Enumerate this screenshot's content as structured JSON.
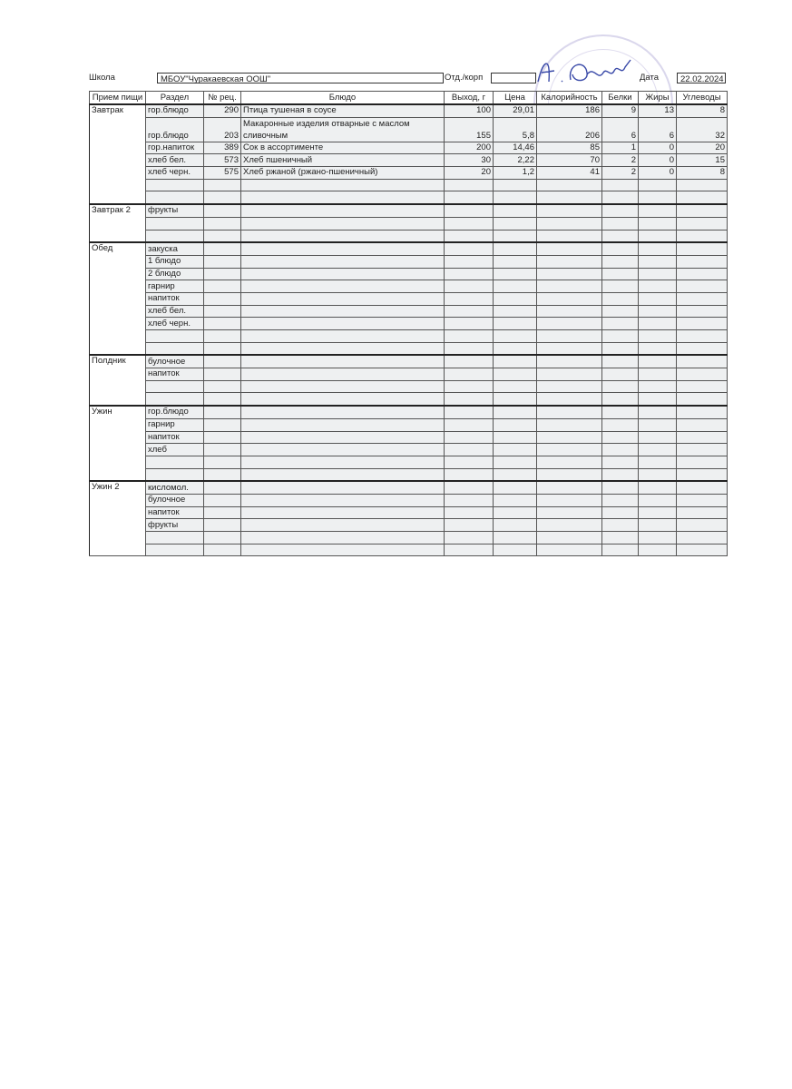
{
  "header": {
    "school_label": "Школа",
    "school_value": "МБОУ\"Чуракаевская ООШ\"",
    "dept_label": "Отд./корп",
    "dept_value": "",
    "date_label": "Дата",
    "date_value": "22.02.2024"
  },
  "columns": [
    "Прием пищи",
    "Раздел",
    "№ рец.",
    "Блюдо",
    "Выход, г",
    "Цена",
    "Калорийность",
    "Белки",
    "Жиры",
    "Углеводы"
  ],
  "groups": [
    {
      "meal": "Завтрак",
      "rows": [
        {
          "section": "гор.блюдо",
          "rec": "290",
          "dish": "Птица тушеная в соусе",
          "out": "100",
          "price": "29,01",
          "kcal": "186",
          "prot": "9",
          "fat": "13",
          "carb": "8"
        },
        {
          "section": "гор.блюдо",
          "rec": "203",
          "dish": "Макаронные изделия отварные с маслом сливочным",
          "out": "155",
          "price": "5,8",
          "kcal": "206",
          "prot": "6",
          "fat": "6",
          "carb": "32",
          "double": true
        },
        {
          "section": "гор.напиток",
          "rec": "389",
          "dish": "Сок в ассортименте",
          "out": "200",
          "price": "14,46",
          "kcal": "85",
          "prot": "1",
          "fat": "0",
          "carb": "20"
        },
        {
          "section": "хлеб бел.",
          "rec": "573",
          "dish": "Хлеб пшеничный",
          "out": "30",
          "price": "2,22",
          "kcal": "70",
          "prot": "2",
          "fat": "0",
          "carb": "15"
        },
        {
          "section": "хлеб черн.",
          "rec": "575",
          "dish": "Хлеб ржаной (ржано-пшеничный)",
          "out": "20",
          "price": "1,2",
          "kcal": "41",
          "prot": "2",
          "fat": "0",
          "carb": "8"
        },
        {},
        {}
      ]
    },
    {
      "meal": "Завтрак 2",
      "rows": [
        {
          "section": "фрукты"
        },
        {},
        {}
      ]
    },
    {
      "meal": "Обед",
      "rows": [
        {
          "section": "закуска"
        },
        {
          "section": "1 блюдо"
        },
        {
          "section": "2 блюдо"
        },
        {
          "section": "гарнир"
        },
        {
          "section": "напиток"
        },
        {
          "section": "хлеб бел."
        },
        {
          "section": "хлеб черн."
        },
        {},
        {}
      ]
    },
    {
      "meal": "Полдник",
      "rows": [
        {
          "section": "булочное"
        },
        {
          "section": "напиток"
        },
        {},
        {}
      ]
    },
    {
      "meal": "Ужин",
      "rows": [
        {
          "section": "гор.блюдо"
        },
        {
          "section": "гарнир"
        },
        {
          "section": "напиток"
        },
        {
          "section": "хлеб"
        },
        {},
        {}
      ]
    },
    {
      "meal": "Ужин 2",
      "rows": [
        {
          "section": "кисломол."
        },
        {
          "section": "булочное"
        },
        {
          "section": "напиток"
        },
        {
          "section": "фрукты"
        },
        {},
        {}
      ]
    }
  ],
  "stamp_color": "#9a90c8",
  "signature_color": "#3a4aa8"
}
